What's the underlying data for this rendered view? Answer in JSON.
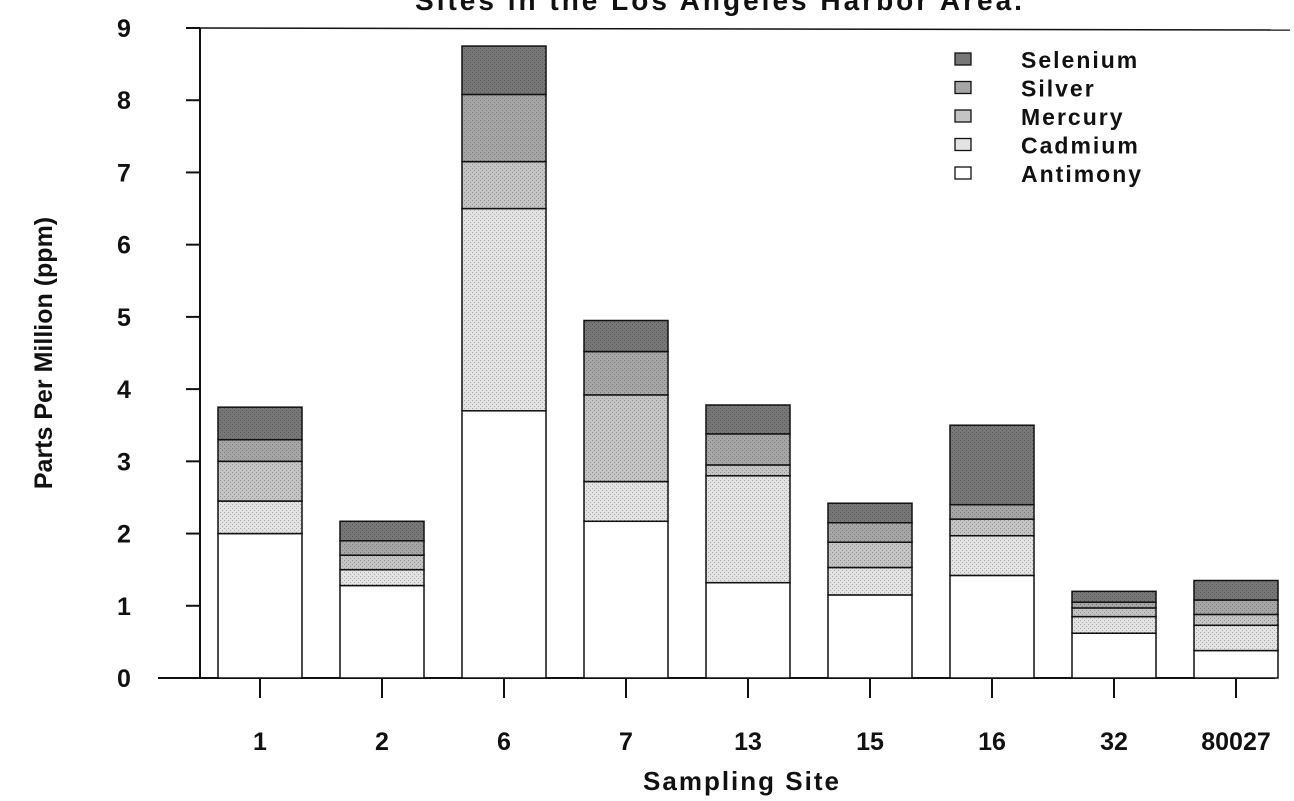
{
  "chart_data": {
    "type": "bar",
    "stacked": true,
    "title": "Sites in the Los Angeles Harbor Area.",
    "xlabel": "Sampling Site",
    "ylabel": "Parts Per Million (ppm)",
    "ylim": [
      0,
      9
    ],
    "yticks": [
      0,
      1,
      2,
      3,
      4,
      5,
      6,
      7,
      8,
      9
    ],
    "grid": false,
    "legend_position": "top-right",
    "categories": [
      "1",
      "2",
      "6",
      "7",
      "13",
      "15",
      "16",
      "32",
      "80027"
    ],
    "series": [
      {
        "name": "Antimony",
        "color": "#ffffff",
        "values": [
          2.0,
          1.28,
          3.7,
          2.17,
          1.32,
          1.15,
          1.42,
          0.62,
          0.38
        ]
      },
      {
        "name": "Cadmium",
        "color": "#e3e3e3",
        "values": [
          0.45,
          0.22,
          2.8,
          0.55,
          1.48,
          0.38,
          0.55,
          0.23,
          0.35
        ]
      },
      {
        "name": "Mercury",
        "color": "#c4c4c4",
        "values": [
          0.55,
          0.2,
          0.65,
          1.2,
          0.15,
          0.35,
          0.23,
          0.12,
          0.15
        ]
      },
      {
        "name": "Silver",
        "color": "#a6a6a6",
        "values": [
          0.3,
          0.2,
          0.93,
          0.6,
          0.43,
          0.27,
          0.2,
          0.08,
          0.2
        ]
      },
      {
        "name": "Selenium",
        "color": "#777777",
        "values": [
          0.45,
          0.27,
          0.67,
          0.43,
          0.4,
          0.27,
          1.1,
          0.15,
          0.27
        ]
      }
    ]
  }
}
